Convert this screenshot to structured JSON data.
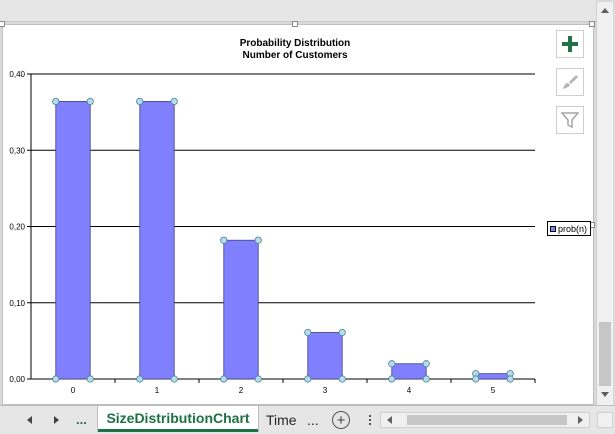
{
  "chart": {
    "title_line1": "Probability Distribution",
    "title_line2": "Number of Customers",
    "legend_label": "prob(n)",
    "bar_color": "#8080ff",
    "marker_color": "#b4dced"
  },
  "chart_data": {
    "type": "bar",
    "title": "Probability Distribution Number of Customers",
    "categories": [
      "0",
      "1",
      "2",
      "3",
      "4",
      "5"
    ],
    "series": [
      {
        "name": "prob(n)",
        "values": [
          0.364,
          0.364,
          0.182,
          0.061,
          0.02,
          0.007
        ]
      }
    ],
    "ylim": [
      0,
      0.4
    ],
    "yticks": [
      "0,00",
      "0,10",
      "0,20",
      "0,30",
      "0,40"
    ],
    "ytick_values": [
      0,
      0.1,
      0.2,
      0.3,
      0.4
    ],
    "grid": true,
    "legend": "right"
  },
  "sheets": {
    "ellipsis_left": "...",
    "active_tab": "SizeDistributionChart",
    "next_tab": "Time",
    "ellipsis_right": "...",
    "add_label": "+"
  },
  "icons": {
    "add_element": "plus-icon",
    "style": "brush-icon",
    "filter": "filter-icon"
  }
}
